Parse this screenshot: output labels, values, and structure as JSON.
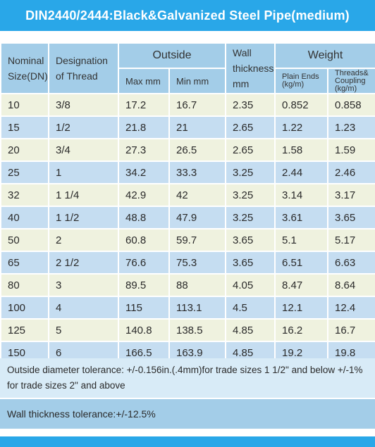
{
  "title": "DIN2440/2444:Black&Galvanized Steel Pipe(medium)",
  "headers": {
    "nominal": "Nominal Size(DN)",
    "designation": "Designation of Thread",
    "outside": "Outside",
    "max": "Max mm",
    "min": "Min mm",
    "wall": "Wall thickness mm",
    "weight": "Weight",
    "plain": "Plain Ends (kg/m)",
    "threads": "Threads& Coupling (kg/m)"
  },
  "rows": [
    {
      "dn": "10",
      "thread": "3/8",
      "max": "17.2",
      "min": "16.7",
      "wall": "2.35",
      "plain": "0.852",
      "threads": "0.858"
    },
    {
      "dn": "15",
      "thread": "1/2",
      "max": "21.8",
      "min": "21",
      "wall": "2.65",
      "plain": "1.22",
      "threads": "1.23"
    },
    {
      "dn": "20",
      "thread": "3/4",
      "max": "27.3",
      "min": "26.5",
      "wall": "2.65",
      "plain": "1.58",
      "threads": "1.59"
    },
    {
      "dn": "25",
      "thread": "1",
      "max": "34.2",
      "min": "33.3",
      "wall": "3.25",
      "plain": "2.44",
      "threads": "2.46"
    },
    {
      "dn": "32",
      "thread": "1 1/4",
      "max": "42.9",
      "min": "42",
      "wall": "3.25",
      "plain": "3.14",
      "threads": "3.17"
    },
    {
      "dn": "40",
      "thread": "1  1/2",
      "max": "48.8",
      "min": "47.9",
      "wall": "3.25",
      "plain": "3.61",
      "threads": "3.65"
    },
    {
      "dn": "50",
      "thread": "2",
      "max": "60.8",
      "min": "59.7",
      "wall": "3.65",
      "plain": "5.1",
      "threads": "5.17"
    },
    {
      "dn": "65",
      "thread": "2  1/2",
      "max": "76.6",
      "min": "75.3",
      "wall": "3.65",
      "plain": "6.51",
      "threads": "6.63"
    },
    {
      "dn": "80",
      "thread": "3",
      "max": "89.5",
      "min": "88",
      "wall": "4.05",
      "plain": "8.47",
      "threads": "8.64"
    },
    {
      "dn": "100",
      "thread": "4",
      "max": "115",
      "min": "113.1",
      "wall": "4.5",
      "plain": "12.1",
      "threads": "12.4"
    },
    {
      "dn": "125",
      "thread": "5",
      "max": "140.8",
      "min": "138.5",
      "wall": "4.85",
      "plain": "16.2",
      "threads": "16.7"
    },
    {
      "dn": "150",
      "thread": "6",
      "max": "166.5",
      "min": "163.9",
      "wall": "4.85",
      "plain": "19.2",
      "threads": "19.8"
    }
  ],
  "notes": {
    "outside_tolerance": "Outside diameter tolerance: +/-0.156in.(.4mm)for trade sizes 1 1/2\" and below +/-1% for trade sizes 2\" and above",
    "wall_tolerance": "Wall thickness tolerance:+/-12.5%"
  },
  "colors": {
    "title_bar": "#29a7e8",
    "header": "#a3cde8",
    "row_odd": "#eff2df",
    "row_even": "#c5ddf1"
  }
}
